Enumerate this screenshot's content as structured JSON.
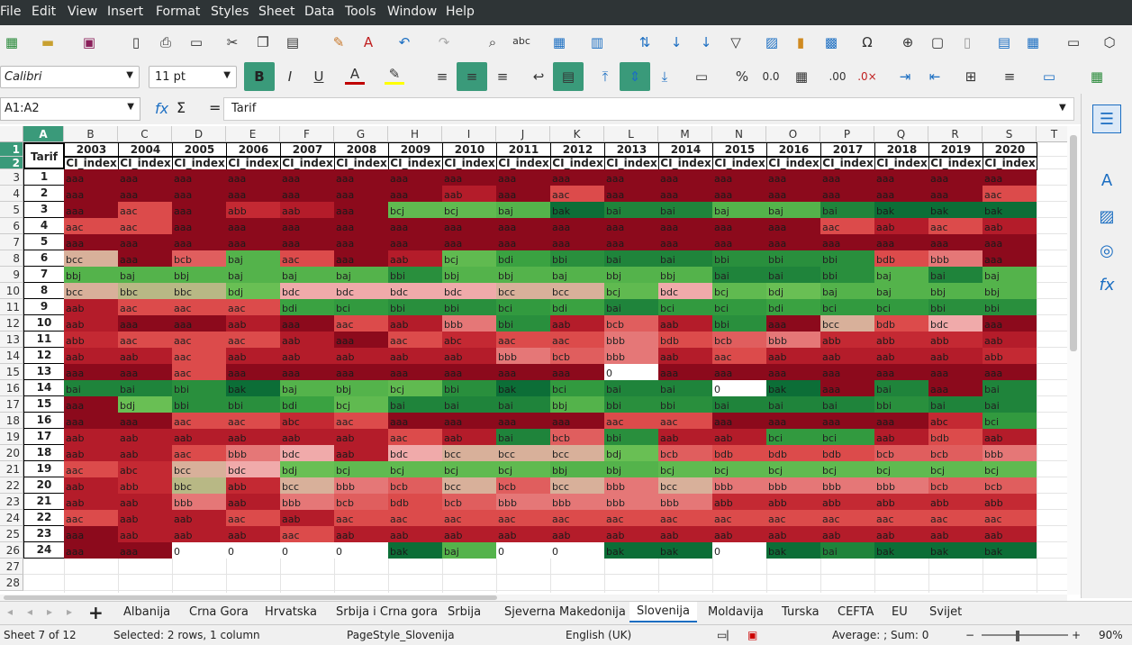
{
  "menu": [
    "File",
    "Edit",
    "View",
    "Insert",
    "Format",
    "Styles",
    "Sheet",
    "Data",
    "Tools",
    "Window",
    "Help"
  ],
  "font": {
    "name": "Calibri",
    "size": "11 pt"
  },
  "formula_bar": {
    "name_box": "A1:A2",
    "fx": "fx",
    "sigma": "Σ",
    "equals": "=",
    "content": "Tarif"
  },
  "column_letters": [
    "A",
    "B",
    "C",
    "D",
    "E",
    "F",
    "G",
    "H",
    "I",
    "J",
    "K",
    "L",
    "M",
    "N",
    "O",
    "P",
    "Q",
    "R",
    "S",
    "T"
  ],
  "row_numbers": [
    "1",
    "2",
    "3",
    "4",
    "5",
    "6",
    "7",
    "8",
    "9",
    "10",
    "11",
    "12",
    "13",
    "14",
    "15",
    "16",
    "17",
    "18",
    "19",
    "20",
    "21",
    "22",
    "23",
    "24",
    "25",
    "26",
    "27",
    "28"
  ],
  "table": {
    "corner": "Tarif",
    "years": [
      "2003",
      "2004",
      "2005",
      "2006",
      "2007",
      "2008",
      "2009",
      "2010",
      "2011",
      "2012",
      "2013",
      "2014",
      "2015",
      "2016",
      "2017",
      "2018",
      "2019",
      "2020"
    ],
    "subheader": "CI_index",
    "tarifs": [
      "1",
      "2",
      "3",
      "4",
      "5",
      "6",
      "7",
      "8",
      "9",
      "10",
      "11",
      "12",
      "13",
      "14",
      "15",
      "16",
      "17",
      "18",
      "19",
      "20",
      "21",
      "22",
      "23",
      "24"
    ],
    "rows": [
      [
        "aaa",
        "aaa",
        "aaa",
        "aaa",
        "aaa",
        "aaa",
        "aaa",
        "aaa",
        "aaa",
        "aaa",
        "aaa",
        "aaa",
        "aaa",
        "aaa",
        "aaa",
        "aaa",
        "aaa",
        "aaa"
      ],
      [
        "aaa",
        "aaa",
        "aaa",
        "aaa",
        "aaa",
        "aaa",
        "aaa",
        "aab",
        "aaa",
        "aac",
        "aaa",
        "aaa",
        "aaa",
        "aaa",
        "aaa",
        "aaa",
        "aaa",
        "aac"
      ],
      [
        "aaa",
        "aac",
        "aaa",
        "abb",
        "aab",
        "aaa",
        "bcj",
        "bcj",
        "baj",
        "bak",
        "bai",
        "bai",
        "baj",
        "baj",
        "bai",
        "bak",
        "bak",
        "bak"
      ],
      [
        "aac",
        "aac",
        "aaa",
        "aaa",
        "aaa",
        "aaa",
        "aaa",
        "aaa",
        "aaa",
        "aaa",
        "aaa",
        "aaa",
        "aaa",
        "aaa",
        "aac",
        "aab",
        "aac",
        "aab"
      ],
      [
        "aaa",
        "aaa",
        "aaa",
        "aaa",
        "aaa",
        "aaa",
        "aaa",
        "aaa",
        "aaa",
        "aaa",
        "aaa",
        "aaa",
        "aaa",
        "aaa",
        "aaa",
        "aaa",
        "aaa",
        "aaa"
      ],
      [
        "bcc",
        "aaa",
        "bcb",
        "baj",
        "aac",
        "aaa",
        "aab",
        "bcj",
        "bdi",
        "bbi",
        "bai",
        "bai",
        "bbi",
        "bbi",
        "bbi",
        "bdb",
        "bbb",
        "aaa"
      ],
      [
        "bbj",
        "baj",
        "bbj",
        "baj",
        "baj",
        "baj",
        "bbi",
        "bbj",
        "bbj",
        "baj",
        "bbj",
        "bbj",
        "bai",
        "bai",
        "bbi",
        "baj",
        "bai",
        "baj"
      ],
      [
        "bcc",
        "bbc",
        "bbc",
        "bdj",
        "bdc",
        "bdc",
        "bdc",
        "bdc",
        "bcc",
        "bcc",
        "bcj",
        "bdc",
        "bcj",
        "bdj",
        "baj",
        "baj",
        "bbj",
        "bbj"
      ],
      [
        "aab",
        "aac",
        "aac",
        "aac",
        "bdi",
        "bci",
        "bbi",
        "bbi",
        "bci",
        "bdi",
        "bai",
        "bci",
        "bci",
        "bdi",
        "bci",
        "bci",
        "bbi",
        "bbi"
      ],
      [
        "aab",
        "aaa",
        "aaa",
        "aab",
        "aaa",
        "aac",
        "aab",
        "bbb",
        "bbi",
        "aab",
        "bcb",
        "aab",
        "bbi",
        "aaa",
        "bcc",
        "bdb",
        "bdc",
        "aaa"
      ],
      [
        "abb",
        "aac",
        "aac",
        "aac",
        "aab",
        "aaa",
        "aac",
        "abc",
        "aac",
        "aac",
        "bbb",
        "bdb",
        "bcb",
        "bbb",
        "abb",
        "abb",
        "abb",
        "aab"
      ],
      [
        "aab",
        "aab",
        "aac",
        "aab",
        "aab",
        "aab",
        "aab",
        "aab",
        "bbb",
        "bcb",
        "bbb",
        "aab",
        "aac",
        "aab",
        "aab",
        "aab",
        "aab",
        "abb"
      ],
      [
        "aaa",
        "aaa",
        "aac",
        "aaa",
        "aaa",
        "aaa",
        "aaa",
        "aaa",
        "aaa",
        "aaa",
        "0",
        "aaa",
        "aaa",
        "aaa",
        "aaa",
        "aaa",
        "aaa",
        "aaa"
      ],
      [
        "bai",
        "bai",
        "bbi",
        "bak",
        "baj",
        "bbj",
        "bcj",
        "bbi",
        "bak",
        "bci",
        "bai",
        "bai",
        "0",
        "bak",
        "aaa",
        "bai",
        "aaa",
        "bai"
      ],
      [
        "aaa",
        "bdj",
        "bbi",
        "bbi",
        "bdi",
        "bcj",
        "bai",
        "bai",
        "bai",
        "bbj",
        "bbi",
        "bbi",
        "bai",
        "bai",
        "bai",
        "bbi",
        "bai",
        "bai"
      ],
      [
        "aaa",
        "aaa",
        "aac",
        "aac",
        "abc",
        "aac",
        "aaa",
        "aaa",
        "aaa",
        "aaa",
        "aac",
        "aac",
        "aaa",
        "aaa",
        "aaa",
        "aaa",
        "abc",
        "bci"
      ],
      [
        "aab",
        "aab",
        "aab",
        "aab",
        "aab",
        "aab",
        "aac",
        "aab",
        "bai",
        "bcb",
        "bbi",
        "aab",
        "aab",
        "bci",
        "bci",
        "aab",
        "bdb",
        "aab"
      ],
      [
        "aab",
        "aab",
        "aac",
        "bbb",
        "bdc",
        "aab",
        "bdc",
        "bcc",
        "bcc",
        "bcc",
        "bdj",
        "bcb",
        "bdb",
        "bdb",
        "bdb",
        "bcb",
        "bcb",
        "bbb"
      ],
      [
        "aac",
        "abc",
        "bcc",
        "bdc",
        "bdj",
        "bcj",
        "bcj",
        "bcj",
        "bcj",
        "bbj",
        "bbj",
        "bcj",
        "bcj",
        "bcj",
        "bcj",
        "bcj",
        "bcj",
        "bcj"
      ],
      [
        "aab",
        "abb",
        "bbc",
        "abb",
        "bcc",
        "bbb",
        "bcb",
        "bcc",
        "bcb",
        "bcc",
        "bbb",
        "bcc",
        "bbb",
        "bbb",
        "bbb",
        "bbb",
        "bcb",
        "bcb"
      ],
      [
        "aab",
        "aab",
        "bbb",
        "aab",
        "bbb",
        "bcb",
        "bdb",
        "bcb",
        "bbb",
        "bbb",
        "bbb",
        "bbb",
        "abb",
        "abb",
        "abb",
        "abb",
        "abb",
        "abb"
      ],
      [
        "aac",
        "aab",
        "aab",
        "aac",
        "aab",
        "aac",
        "aac",
        "aac",
        "aac",
        "aac",
        "aac",
        "aac",
        "aac",
        "aac",
        "aac",
        "aac",
        "aac",
        "aac"
      ],
      [
        "aaa",
        "aab",
        "aab",
        "aab",
        "aac",
        "aab",
        "aab",
        "aab",
        "aab",
        "aab",
        "aab",
        "aab",
        "aab",
        "aab",
        "aab",
        "aab",
        "aab",
        "aab"
      ],
      [
        "aaa",
        "aaa",
        "0",
        "0",
        "0",
        "0",
        "bak",
        "baj",
        "0",
        "0",
        "bak",
        "bak",
        "0",
        "bak",
        "bai",
        "bak",
        "bak",
        "bak"
      ]
    ]
  },
  "sheet_tabs": [
    "Albanija",
    "Crna Gora",
    "Hrvatska",
    "Srbija i Crna gora",
    "Srbija",
    "Sjeverna Makedonija",
    "Slovenija",
    "Moldavija",
    "Turska",
    "CEFTA",
    "EU",
    "Svijet"
  ],
  "active_tab": "Slovenija",
  "status": {
    "sheet": "Sheet 7 of 12",
    "selection": "Selected: 2 rows, 1 column",
    "pagestyle": "PageStyle_Slovenija",
    "language": "English (UK)",
    "summary": "Average: ; Sum: 0",
    "zoom": "90%"
  },
  "colors": {
    "menubar": "#2e3436",
    "toggle_active": "#3a9a7a",
    "accent": "#1b6ec2"
  }
}
